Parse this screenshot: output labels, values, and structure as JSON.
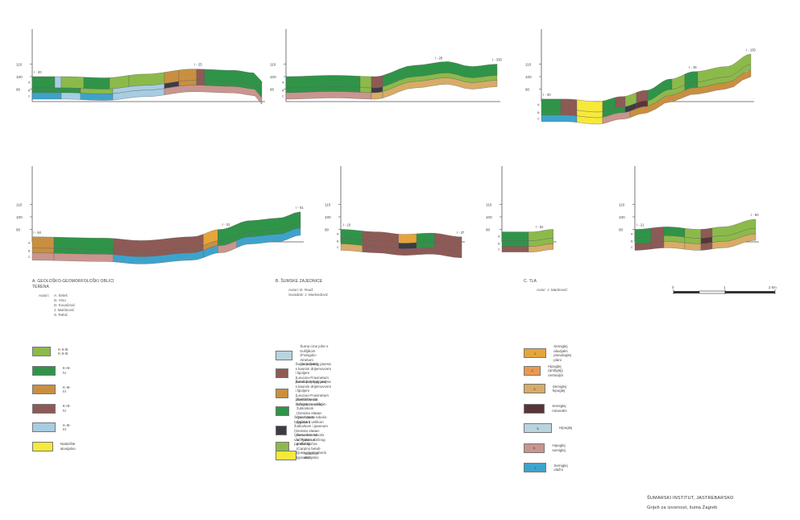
{
  "palette": {
    "A": "#8cba4a",
    "B": "#2f9448",
    "C": "#c88f41",
    "D": "#8e5a55",
    "E": "#a7cde2",
    "F": "#f6e93a",
    "G": "#3e3b44",
    "H": "#e6a53a",
    "I": "#ea9a4f",
    "J": "#d8ac66",
    "K": "#5a3438",
    "L": "#b9d3df",
    "M": "#c9958e",
    "N": "#3ea3cc"
  },
  "profiles": [
    {
      "y_ticks": [
        "110",
        "100",
        "90"
      ],
      "abc": [
        "A",
        "B",
        "C"
      ],
      "start_label": "I - 20",
      "mid_label": "I - 25",
      "end_label": "",
      "pts": [
        [
          0,
          100
        ],
        [
          40,
          100
        ],
        [
          90,
          99
        ],
        [
          140,
          102
        ],
        [
          200,
          106
        ],
        [
          250,
          105
        ],
        [
          275,
          103
        ],
        [
          285,
          96
        ]
      ],
      "layers": [
        {
          "th": 14,
          "cells": [
            [
              0,
              28,
              "B"
            ],
            [
              28,
              36,
              "E"
            ],
            [
              36,
              64,
              "A"
            ],
            [
              64,
              96,
              "B"
            ],
            [
              96,
              120,
              "A"
            ],
            [
              120,
              164,
              "A"
            ],
            [
              164,
              182,
              "C"
            ],
            [
              182,
              204,
              "C"
            ],
            [
              204,
              214,
              "D"
            ],
            [
              214,
              285,
              "B"
            ]
          ]
        },
        {
          "th": 6,
          "cells": [
            [
              0,
              60,
              "B"
            ],
            [
              60,
              100,
              "A"
            ],
            [
              100,
              164,
              "E"
            ],
            [
              164,
              182,
              "G"
            ],
            [
              182,
              204,
              "C"
            ],
            [
              204,
              214,
              "D"
            ],
            [
              214,
              285,
              "B"
            ]
          ]
        },
        {
          "th": 8,
          "cells": [
            [
              0,
              36,
              "N"
            ],
            [
              36,
              60,
              "E"
            ],
            [
              60,
              100,
              "N"
            ],
            [
              100,
              164,
              "E"
            ],
            [
              164,
              285,
              "M"
            ]
          ]
        }
      ]
    },
    {
      "y_ticks": [
        "110",
        "100",
        "90"
      ],
      "abc": [
        "A",
        "B",
        "C"
      ],
      "start_label": "",
      "mid_label": "I - 28",
      "end_label": "I - 330",
      "pts": [
        [
          0,
          100
        ],
        [
          60,
          101
        ],
        [
          110,
          100
        ],
        [
          160,
          109
        ],
        [
          200,
          112
        ],
        [
          230,
          108
        ],
        [
          262,
          110
        ]
      ],
      "layers": [
        {
          "th": 14,
          "cells": [
            [
              0,
              92,
              "B"
            ],
            [
              92,
              106,
              "A"
            ],
            [
              106,
              120,
              "D"
            ],
            [
              120,
              262,
              "B"
            ]
          ]
        },
        {
          "th": 6,
          "cells": [
            [
              0,
              92,
              "B"
            ],
            [
              92,
              106,
              "A"
            ],
            [
              106,
              120,
              "G"
            ],
            [
              120,
              262,
              "A"
            ]
          ]
        },
        {
          "th": 8,
          "cells": [
            [
              0,
              106,
              "M"
            ],
            [
              106,
              120,
              "J"
            ],
            [
              120,
              262,
              "J"
            ]
          ]
        }
      ]
    },
    {
      "y_ticks": [
        "110",
        "100",
        "90"
      ],
      "abc": [
        "A",
        "B",
        "C"
      ],
      "start_label": "I - 30",
      "mid_label": "I - 35",
      "end_label": "I - 150",
      "pts": [
        [
          0,
          82
        ],
        [
          30,
          82
        ],
        [
          70,
          80
        ],
        [
          100,
          84
        ],
        [
          130,
          89
        ],
        [
          160,
          98
        ],
        [
          190,
          104
        ],
        [
          230,
          108
        ],
        [
          260,
          118
        ]
      ],
      "layers": [
        {
          "th": 13,
          "cells": [
            [
              0,
              24,
              "B"
            ],
            [
              24,
              44,
              "D"
            ],
            [
              44,
              76,
              "F"
            ],
            [
              76,
              92,
              "B"
            ],
            [
              92,
              104,
              "D"
            ],
            [
              104,
              118,
              "A"
            ],
            [
              118,
              132,
              "D"
            ],
            [
              132,
              162,
              "B"
            ],
            [
              162,
              178,
              "A"
            ],
            [
              178,
              194,
              "B"
            ],
            [
              194,
              260,
              "A"
            ]
          ]
        },
        {
          "th": 7,
          "cells": [
            [
              0,
              24,
              "B"
            ],
            [
              24,
              44,
              "D"
            ],
            [
              44,
              76,
              "F"
            ],
            [
              76,
              104,
              "B"
            ],
            [
              104,
              118,
              "G"
            ],
            [
              118,
              132,
              "K"
            ],
            [
              132,
              178,
              "A"
            ],
            [
              178,
              194,
              "B"
            ],
            [
              194,
              260,
              "A"
            ]
          ]
        },
        {
          "th": 8,
          "cells": [
            [
              0,
              44,
              "N"
            ],
            [
              44,
              76,
              "F"
            ],
            [
              76,
              110,
              "M"
            ],
            [
              110,
              260,
              "C"
            ]
          ]
        }
      ]
    },
    {
      "y_ticks": [
        "110",
        "100",
        "90"
      ],
      "abc": [
        "A",
        "B",
        "C"
      ],
      "start_label": "I - 50",
      "mid_label": "I - 31",
      "end_label": "I - 51",
      "pts": [
        [
          0,
          84
        ],
        [
          100,
          83
        ],
        [
          150,
          81
        ],
        [
          220,
          84
        ],
        [
          260,
          90
        ],
        [
          300,
          97
        ],
        [
          340,
          99
        ],
        [
          370,
          104
        ]
      ],
      "layers": [
        {
          "th": 14,
          "cells": [
            [
              0,
              30,
              "C"
            ],
            [
              30,
              112,
              "B"
            ],
            [
              112,
              236,
              "D"
            ],
            [
              236,
              256,
              "H"
            ],
            [
              256,
              370,
              "B"
            ]
          ]
        },
        {
          "th": 6,
          "cells": [
            [
              0,
              30,
              "C"
            ],
            [
              30,
              112,
              "B"
            ],
            [
              112,
              236,
              "D"
            ],
            [
              236,
              256,
              "C"
            ],
            [
              256,
              370,
              "B"
            ]
          ]
        },
        {
          "th": 9,
          "cells": [
            [
              0,
              30,
              "M"
            ],
            [
              30,
              112,
              "M"
            ],
            [
              112,
              236,
              "N"
            ],
            [
              236,
              256,
              "N"
            ],
            [
              256,
              282,
              "M"
            ],
            [
              282,
              370,
              "N"
            ]
          ]
        }
      ]
    },
    {
      "y_ticks": [
        "110",
        "100",
        "90"
      ],
      "abc": [
        "A",
        "B",
        "C"
      ],
      "start_label": "I - 10",
      "mid_label": "",
      "end_label": "I - 37",
      "pts": [
        [
          0,
          90
        ],
        [
          40,
          88
        ],
        [
          70,
          86
        ],
        [
          100,
          87
        ],
        [
          134,
          84
        ]
      ],
      "layers": [
        {
          "th": 11,
          "cells": [
            [
              0,
              24,
              "B"
            ],
            [
              24,
              64,
              "D"
            ],
            [
              64,
              84,
              "H"
            ],
            [
              84,
              104,
              "B"
            ],
            [
              104,
              134,
              "D"
            ]
          ]
        },
        {
          "th": 7,
          "cells": [
            [
              0,
              24,
              "B"
            ],
            [
              24,
              64,
              "D"
            ],
            [
              64,
              84,
              "G"
            ],
            [
              84,
              104,
              "B"
            ],
            [
              104,
              134,
              "D"
            ]
          ]
        },
        {
          "th": 8,
          "cells": [
            [
              0,
              24,
              "J"
            ],
            [
              24,
              134,
              "D"
            ]
          ]
        }
      ]
    },
    {
      "y_ticks": [
        "110",
        "100",
        "90"
      ],
      "abc": [
        "A",
        "B",
        "C"
      ],
      "start_label": "",
      "mid_label": "I - 52",
      "end_label": "",
      "pts": [
        [
          0,
          88
        ],
        [
          50,
          88
        ],
        [
          85,
          90
        ]
      ],
      "layers": [
        {
          "th": 11,
          "cells": [
            [
              0,
              44,
              "B"
            ],
            [
              44,
              85,
              "A"
            ]
          ]
        },
        {
          "th": 7,
          "cells": [
            [
              0,
              44,
              "B"
            ],
            [
              44,
              85,
              "A"
            ]
          ]
        },
        {
          "th": 7,
          "cells": [
            [
              0,
              44,
              "D"
            ],
            [
              44,
              85,
              "J"
            ]
          ]
        }
      ]
    },
    {
      "y_ticks": [
        "110",
        "100",
        "90"
      ],
      "abc": [
        "A",
        "B",
        "C"
      ],
      "start_label": "I - 21",
      "mid_label": "",
      "end_label": "I - 60",
      "pts": [
        [
          0,
          90
        ],
        [
          40,
          92
        ],
        [
          80,
          90
        ],
        [
          110,
          92
        ],
        [
          150,
          98
        ]
      ],
      "layers": [
        {
          "th": 11,
          "cells": [
            [
              0,
              20,
              "B"
            ],
            [
              20,
              36,
              "D"
            ],
            [
              36,
              62,
              "B"
            ],
            [
              62,
              82,
              "A"
            ],
            [
              82,
              96,
              "D"
            ],
            [
              96,
              150,
              "A"
            ]
          ]
        },
        {
          "th": 7,
          "cells": [
            [
              0,
              20,
              "B"
            ],
            [
              20,
              36,
              "D"
            ],
            [
              36,
              62,
              "A"
            ],
            [
              62,
              82,
              "A"
            ],
            [
              82,
              96,
              "K"
            ],
            [
              96,
              150,
              "A"
            ]
          ]
        },
        {
          "th": 8,
          "cells": [
            [
              0,
              20,
              "D"
            ],
            [
              20,
              36,
              "D"
            ],
            [
              36,
              62,
              "J"
            ],
            [
              62,
              82,
              "J"
            ],
            [
              82,
              96,
              "D"
            ],
            [
              96,
              150,
              "J"
            ]
          ]
        }
      ]
    }
  ],
  "legend_a": {
    "title": "A. GEOLOŠKO-GEOMORFOLOŠKI OBLICI TERENA",
    "authors_label": "Autori:",
    "authors": [
      "A. Šeleš",
      "D. Vrso",
      "D. Kovačević",
      "J. Martinović",
      "S. Rebić"
    ],
    "items": [
      {
        "color": "A",
        "text": "K-II-III    K-II-III"
      },
      {
        "color": "B",
        "text": "K-III-IV"
      },
      {
        "color": "C",
        "text": "K-III-III"
      },
      {
        "color": "D",
        "text": "K-III-IV"
      },
      {
        "color": "E",
        "text": "K-III-III"
      },
      {
        "color": "F",
        "text": "Nalazište aluvijalno"
      }
    ]
  },
  "legend_b": {
    "title": "B. ŠUMSKE ZAJEDNICE",
    "authors": [
      "Autori: Đ. Rauš",
      "Suradnik: J. Medvedović"
    ],
    "items": [
      {
        "color": "L",
        "lines": [
          "Šuma crne johe s trušljikom",
          "(Frangulo-Alnetum glutinosae)"
        ]
      },
      {
        "color": "D",
        "lines": [
          "Šuma poljskog jasena s kasnim drijemovcem i lipoljem",
          "(Leucoio-Fraxinetum parvifoliae typicum)"
        ]
      },
      {
        "color": "C",
        "lines": [
          "Šuma poljskog jasena s kasnim drijemovcem i lipoljem",
          "(Leucoio-Fraxinetum parvifoliae var. Genista tinctoria)"
        ]
      },
      {
        "color": "B",
        "lines": [
          "Šuma hrasta lužnjaka s velikom žutilovkom",
          "(Genisto elatae-Quercetum roboris typicum)"
        ]
      },
      {
        "color": "G",
        "lines": [
          "Šuma hrasta lužnjaka s velikom žutilovkom i jasenom",
          "(Genisto elatae-Quercetum roboris var. Fraxinus parvifolia)"
        ]
      },
      {
        "color": "A",
        "lines": [
          "Šuma hrasta lužnjaka i običnog graba tipična",
          "(Carpino betuli-Quercetum roboris typicum)"
        ]
      },
      {
        "color": "F",
        "lines": [
          "Nalazište aluvijalno"
        ]
      }
    ]
  },
  "legend_c": {
    "title": "C. TLA",
    "authors": [
      "Autor: J. Martinović"
    ],
    "items": [
      {
        "color": "H",
        "code": "1",
        "lines": [
          "Semiglej aluvijalni",
          "pseudoglej plani"
        ]
      },
      {
        "color": "I",
        "code": "2",
        "lines": [
          "Hipoglej (amfiglej) vertisoljni"
        ]
      },
      {
        "color": "J",
        "code": "3",
        "lines": [
          "Semiglej hipoglej"
        ]
      },
      {
        "color": "K",
        "code": "4",
        "lines": [
          "Semiglej mineralni"
        ]
      },
      {
        "color": "L",
        "code": "5",
        "lines": [
          "Hipoglej"
        ]
      },
      {
        "color": "M",
        "code": "6",
        "lines": [
          "Hipoglej semiglej"
        ]
      },
      {
        "color": "N",
        "code": "7",
        "lines": [
          "Semiglej vlažni"
        ]
      }
    ]
  },
  "scale": {
    "labels": [
      "0",
      "1",
      "2 km"
    ]
  },
  "footer": {
    "line1": "ŠUMARSKI INSTITUT, JASTREBARSKO",
    "line2": "Grijeh za izvornost, šuma Žagreb"
  }
}
